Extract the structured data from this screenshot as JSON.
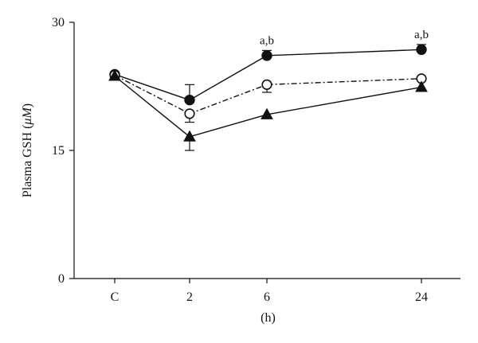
{
  "chart_data": {
    "type": "line",
    "title": "",
    "xlabel": "(h)",
    "ylabel": "Plasma GSH (μM)",
    "ylabel_parts": {
      "prefix": "Plasma GSH (",
      "unit": "μM",
      "suffix": ")"
    },
    "categories": [
      "C",
      "2",
      "6",
      "24"
    ],
    "yticks": [
      0,
      15,
      30
    ],
    "ylim": [
      0,
      30
    ],
    "grid": false,
    "legend": "none",
    "series": [
      {
        "marker": "filled-circle",
        "line_style": "solid",
        "values": [
          23.9,
          20.9,
          26.1,
          26.8
        ],
        "error_up": [
          0,
          1.8,
          0.6,
          0.6
        ],
        "error_down": [
          0,
          0,
          0,
          0
        ],
        "annotations": [
          "",
          "",
          "a,b",
          "a,b"
        ]
      },
      {
        "marker": "open-circle",
        "line_style": "dash-dot",
        "values": [
          23.8,
          19.3,
          22.7,
          23.4
        ],
        "error_up": [
          0,
          0,
          0,
          0
        ],
        "error_down": [
          0,
          1.0,
          0.9,
          0
        ],
        "annotations": [
          "",
          "",
          "",
          ""
        ]
      },
      {
        "marker": "filled-triangle",
        "line_style": "solid",
        "values": [
          23.7,
          16.6,
          19.2,
          22.4
        ],
        "error_up": [
          0,
          0,
          0,
          0
        ],
        "error_down": [
          0,
          1.6,
          0,
          0
        ],
        "annotations": [
          "",
          "",
          "",
          ""
        ]
      }
    ],
    "colors": {
      "axis": "#111111",
      "series": "#111111",
      "background": "#ffffff"
    }
  }
}
